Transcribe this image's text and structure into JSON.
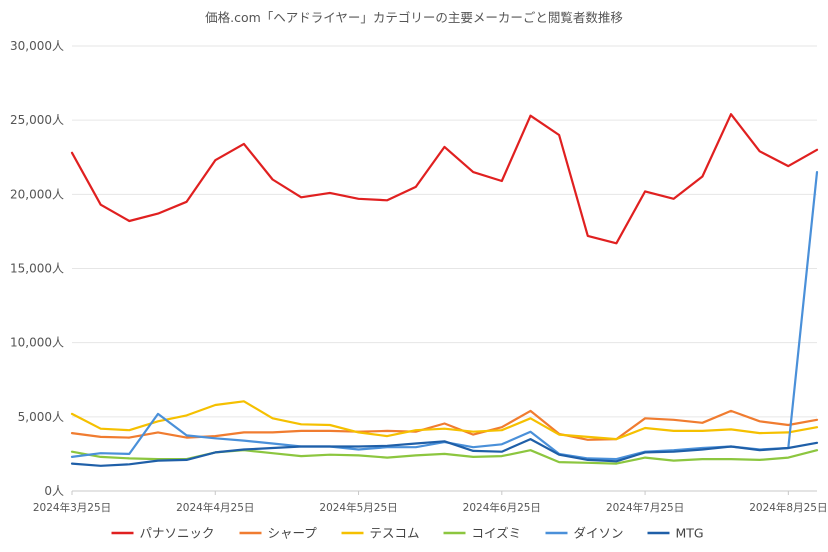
{
  "chart_data": {
    "type": "line",
    "title": "価格.com「ヘアドライヤー」カテゴリーの主要メーカーごと閲覧者数推移",
    "ylim": [
      0,
      30000
    ],
    "yticks": [
      "0人",
      "5,000人",
      "10,000人",
      "15,000人",
      "20,000人",
      "25,000人",
      "30,000人"
    ],
    "x_count": 27,
    "xtick_labels": [
      {
        "index": 0,
        "label": "2024年3月25日"
      },
      {
        "index": 5,
        "label": "2024年4月25日"
      },
      {
        "index": 10,
        "label": "2024年5月25日"
      },
      {
        "index": 15,
        "label": "2024年6月25日"
      },
      {
        "index": 20,
        "label": "2024年7月25日"
      },
      {
        "index": 25,
        "label": "2024年8月25日"
      }
    ],
    "grid": true,
    "legend_position": "bottom",
    "series": [
      {
        "name": "パナソニック",
        "color": "#e02020",
        "values": [
          22800,
          19300,
          18200,
          18700,
          19500,
          22300,
          23400,
          21000,
          19800,
          20100,
          19700,
          19600,
          20500,
          23200,
          21500,
          20900,
          25300,
          24000,
          17200,
          16700,
          20200,
          19700,
          21200,
          25400,
          22900,
          21900,
          23000
        ]
      },
      {
        "name": "シャープ",
        "color": "#f07c30",
        "values": [
          3900,
          3650,
          3600,
          3950,
          3600,
          3700,
          3950,
          3950,
          4050,
          4050,
          4000,
          4050,
          4000,
          4550,
          3800,
          4300,
          5400,
          3850,
          3450,
          3500,
          4900,
          4800,
          4600,
          5400,
          4700,
          4450,
          4800
        ]
      },
      {
        "name": "テスコム",
        "color": "#f5c000",
        "values": [
          5200,
          4200,
          4100,
          4700,
          5100,
          5800,
          6050,
          4900,
          4500,
          4450,
          3950,
          3700,
          4100,
          4200,
          4000,
          4100,
          4900,
          3800,
          3650,
          3500,
          4250,
          4050,
          4050,
          4150,
          3900,
          3950,
          4300
        ]
      },
      {
        "name": "コイズミ",
        "color": "#8cc63f",
        "values": [
          2650,
          2300,
          2200,
          2150,
          2150,
          2600,
          2750,
          2550,
          2350,
          2450,
          2400,
          2250,
          2400,
          2500,
          2300,
          2350,
          2750,
          1950,
          1900,
          1850,
          2250,
          2050,
          2150,
          2150,
          2100,
          2250,
          2750
        ]
      },
      {
        "name": "ダイソン",
        "color": "#4a90d9",
        "values": [
          2300,
          2550,
          2500,
          5200,
          3750,
          3550,
          3400,
          3200,
          3000,
          3000,
          2800,
          2950,
          2950,
          3300,
          2950,
          3150,
          4000,
          2500,
          2200,
          2150,
          2650,
          2750,
          2900,
          3000,
          2800,
          2900,
          21500
        ]
      },
      {
        "name": "MTG",
        "color": "#1f5fa8",
        "values": [
          1850,
          1700,
          1800,
          2050,
          2100,
          2600,
          2800,
          2900,
          3000,
          3000,
          3000,
          3050,
          3200,
          3350,
          2700,
          2650,
          3500,
          2450,
          2100,
          2000,
          2600,
          2650,
          2800,
          3000,
          2750,
          2900,
          3250
        ]
      }
    ]
  }
}
